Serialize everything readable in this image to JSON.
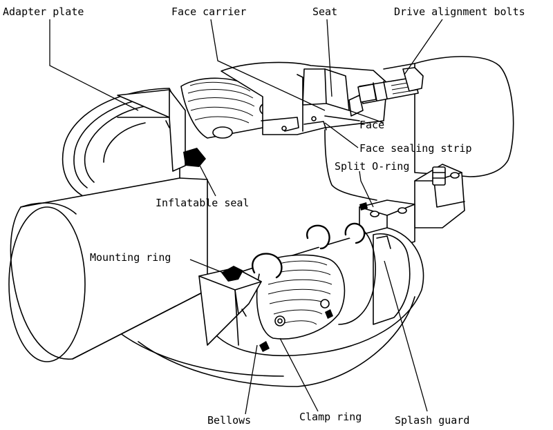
{
  "labels": {
    "adapter_plate": "Adapter plate",
    "face_carrier": "Face carrier",
    "seat": "Seat",
    "drive_alignment_bolts": "Drive alignment bolts",
    "face": "Face",
    "face_sealing_strip": "Face sealing strip",
    "split_o_ring": "Split O-ring",
    "inflatable_seal": "Inflatable seal",
    "mounting_ring": "Mounting ring",
    "bellows": "Bellows",
    "clamp_ring": "Clamp ring",
    "splash_guard": "Splash guard"
  },
  "colors": {
    "ink": "#000000",
    "paper": "#ffffff"
  }
}
